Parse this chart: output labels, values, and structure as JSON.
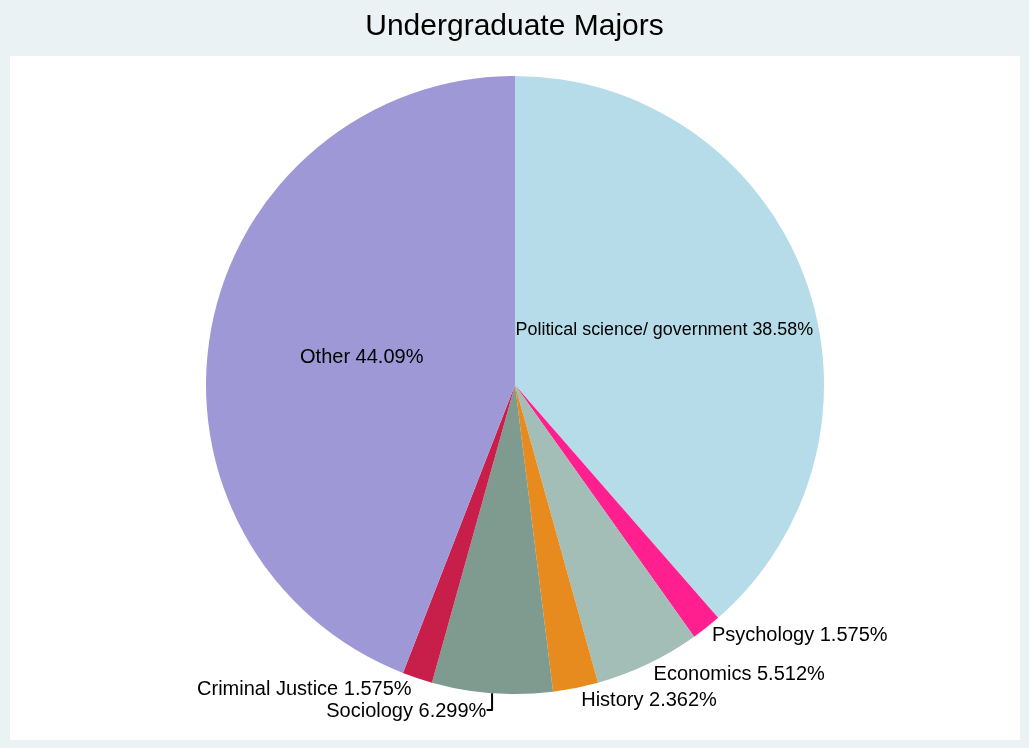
{
  "chart_data": {
    "type": "pie",
    "title": "Undergraduate Majors",
    "categories": [
      "Political science/ government",
      "Psychology",
      "Economics",
      "History",
      "Sociology",
      "Criminal Justice",
      "Other"
    ],
    "values": [
      38.58,
      1.575,
      5.512,
      2.362,
      6.299,
      1.575,
      44.09
    ],
    "value_labels": [
      "38.58%",
      "1.575%",
      "5.512%",
      "2.362%",
      "6.299%",
      "1.575%",
      "44.09%"
    ],
    "colors": [
      "#b5dce8",
      "#ff1f8e",
      "#a3bdb7",
      "#e88b1e",
      "#7f9a8f",
      "#c81e4a",
      "#9f98d6"
    ],
    "legend": false
  }
}
